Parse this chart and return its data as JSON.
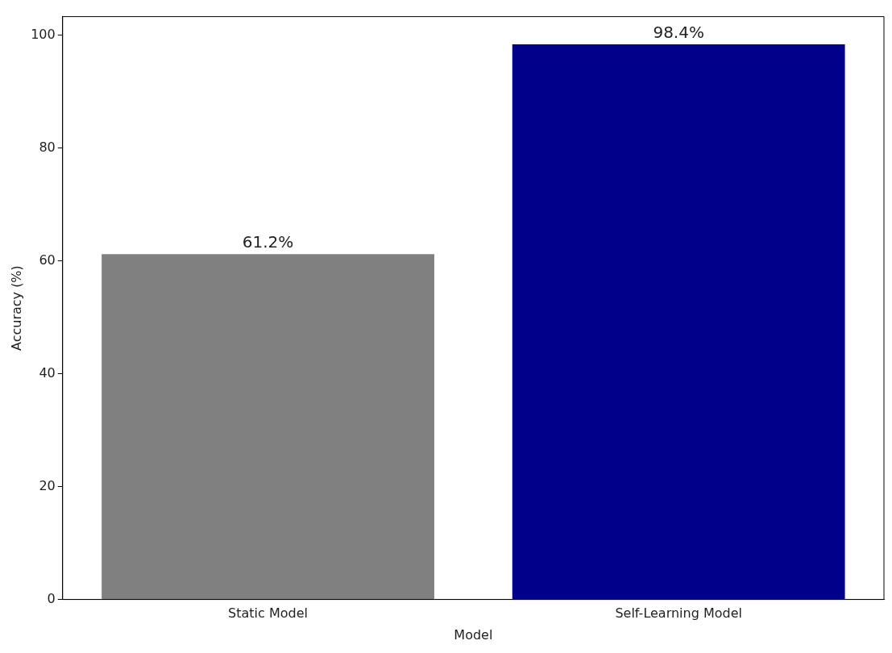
{
  "chart_data": {
    "type": "bar",
    "xlabel": "Model",
    "ylabel": "Accuracy (%)",
    "categories": [
      "Static Model",
      "Self-Learning Model"
    ],
    "values": [
      61.2,
      98.4
    ],
    "colors": [
      "#808080",
      "#00008b"
    ],
    "value_labels": [
      "61.2%",
      "98.4%"
    ],
    "ylim": [
      0,
      103.3
    ],
    "yticks": [
      0,
      20,
      40,
      60,
      80,
      100
    ],
    "grid": false,
    "legend": false
  }
}
